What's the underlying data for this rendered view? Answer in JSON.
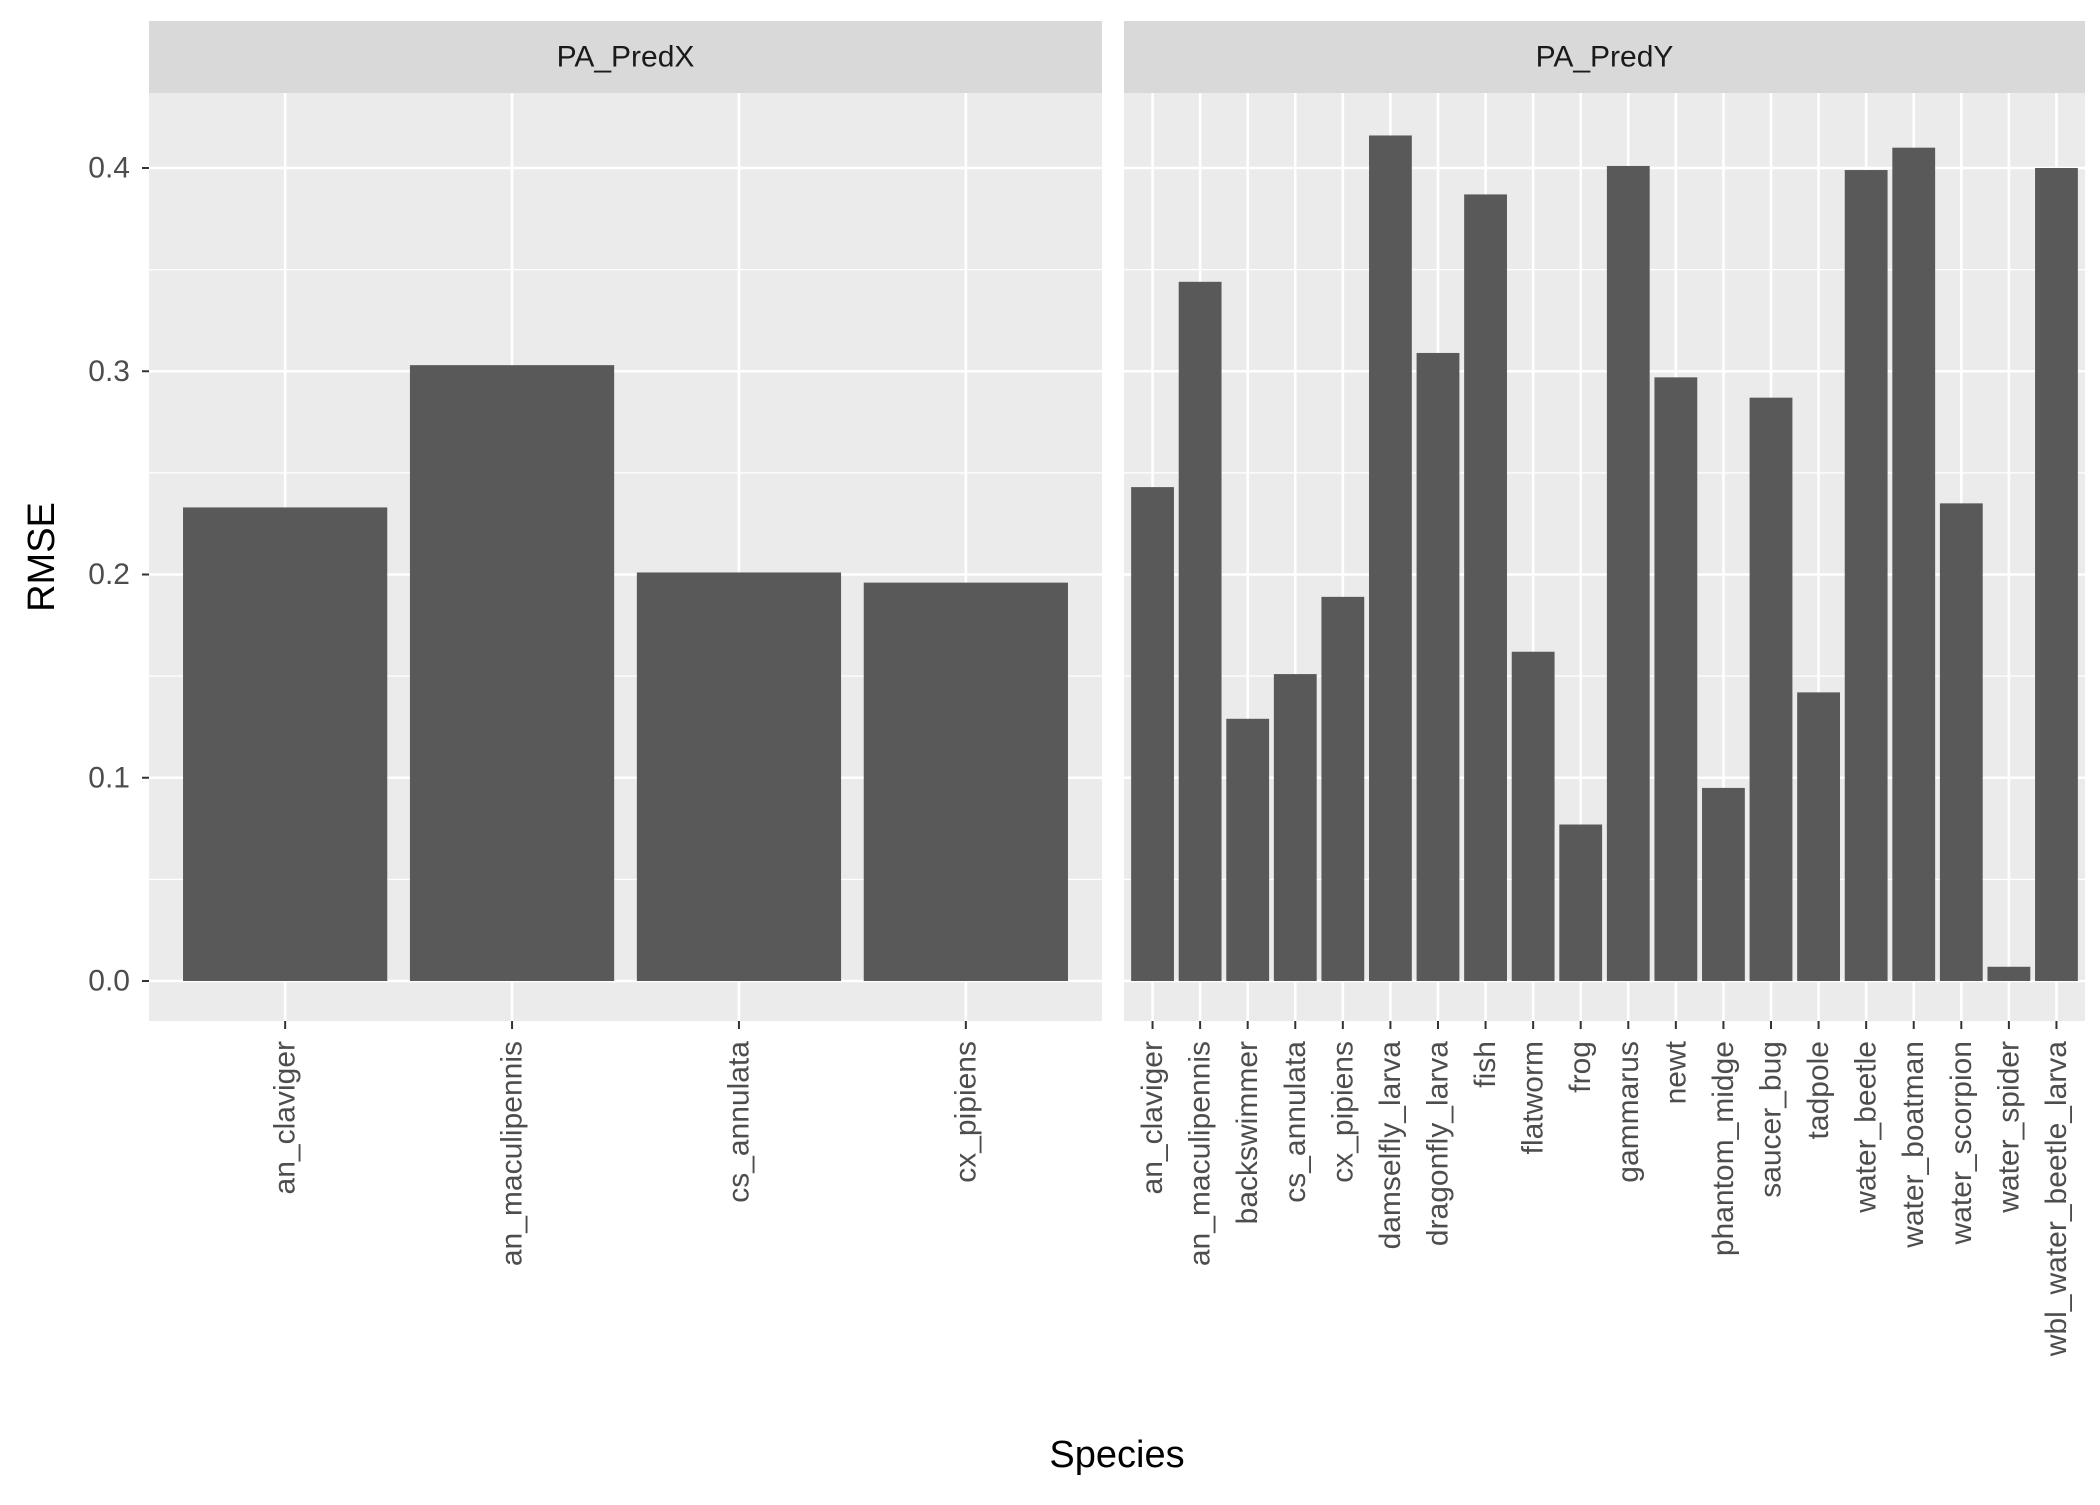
{
  "colors": {
    "panel_bg": "#EBEBEB",
    "strip_bg": "#D9D9D9",
    "grid_major": "#FFFFFF",
    "bar_fill": "#595959",
    "axis_text": "#4D4D4D",
    "title_text": "#000000",
    "strip_text": "#1A1A1A"
  },
  "chart_data": {
    "type": "bar",
    "xlabel": "Species",
    "ylabel": "RMSE",
    "ylim": [
      -0.02,
      0.44
    ],
    "yticks": [
      0.0,
      0.1,
      0.2,
      0.3,
      0.4
    ],
    "ytick_labels": [
      "0.0",
      "0.1",
      "0.2",
      "0.3",
      "0.4"
    ],
    "grid": true,
    "facets": [
      {
        "strip_label": "PA_PredX",
        "categories": [
          "an_claviger",
          "an_maculipennis",
          "cs_annulata",
          "cx_pipiens"
        ],
        "values": [
          0.233,
          0.303,
          0.201,
          0.196
        ]
      },
      {
        "strip_label": "PA_PredY",
        "categories": [
          "an_claviger",
          "an_maculipennis",
          "backswimmer",
          "cs_annulata",
          "cx_pipiens",
          "damselfly_larva",
          "dragonfly_larva",
          "fish",
          "flatworm",
          "frog",
          "gammarus",
          "newt",
          "phantom_midge",
          "saucer_bug",
          "tadpole",
          "water_beetle",
          "water_boatman",
          "water_scorpion",
          "water_spider",
          "wbl_water_beetle_larva"
        ],
        "values": [
          0.243,
          0.344,
          0.129,
          0.151,
          0.189,
          0.416,
          0.309,
          0.387,
          0.162,
          0.077,
          0.401,
          0.297,
          0.095,
          0.287,
          0.142,
          0.399,
          0.41,
          0.235,
          0.007,
          0.4
        ]
      }
    ]
  }
}
